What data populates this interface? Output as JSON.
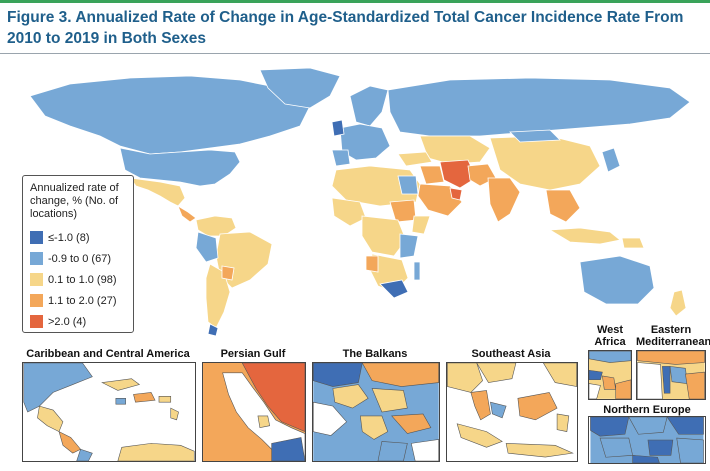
{
  "title": "Figure 3. Annualized Rate of Change in Age-Standardized Total Cancer Incidence Rate From 2010 to 2019 in Both Sexes",
  "colors": {
    "c1": "#3f6eb4",
    "c2": "#77a8d6",
    "c3": "#f6d689",
    "c4": "#f3a75a",
    "c5": "#e4663e",
    "ocean": "#ffffff",
    "border": "#ffffff"
  },
  "legend": {
    "title": "Annualized rate of change, % (No. of locations)",
    "items": [
      {
        "label": "≤-1.0 (8)",
        "color": "#3f6eb4"
      },
      {
        "label": "-0.9 to 0 (67)",
        "color": "#77a8d6"
      },
      {
        "label": "0.1 to 1.0 (98)",
        "color": "#f6d689"
      },
      {
        "label": "1.1 to 2.0 (27)",
        "color": "#f3a75a"
      },
      {
        "label": ">2.0 (4)",
        "color": "#e4663e"
      }
    ]
  },
  "insets": {
    "caribbean": "Caribbean and Central America",
    "persian_gulf": "Persian Gulf",
    "balkans": "The Balkans",
    "southeast_asia": "Southeast Asia",
    "west_africa": "West Africa",
    "eastern_mediterranean": "Eastern Mediterranean",
    "northern_europe": "Northern Europe"
  }
}
